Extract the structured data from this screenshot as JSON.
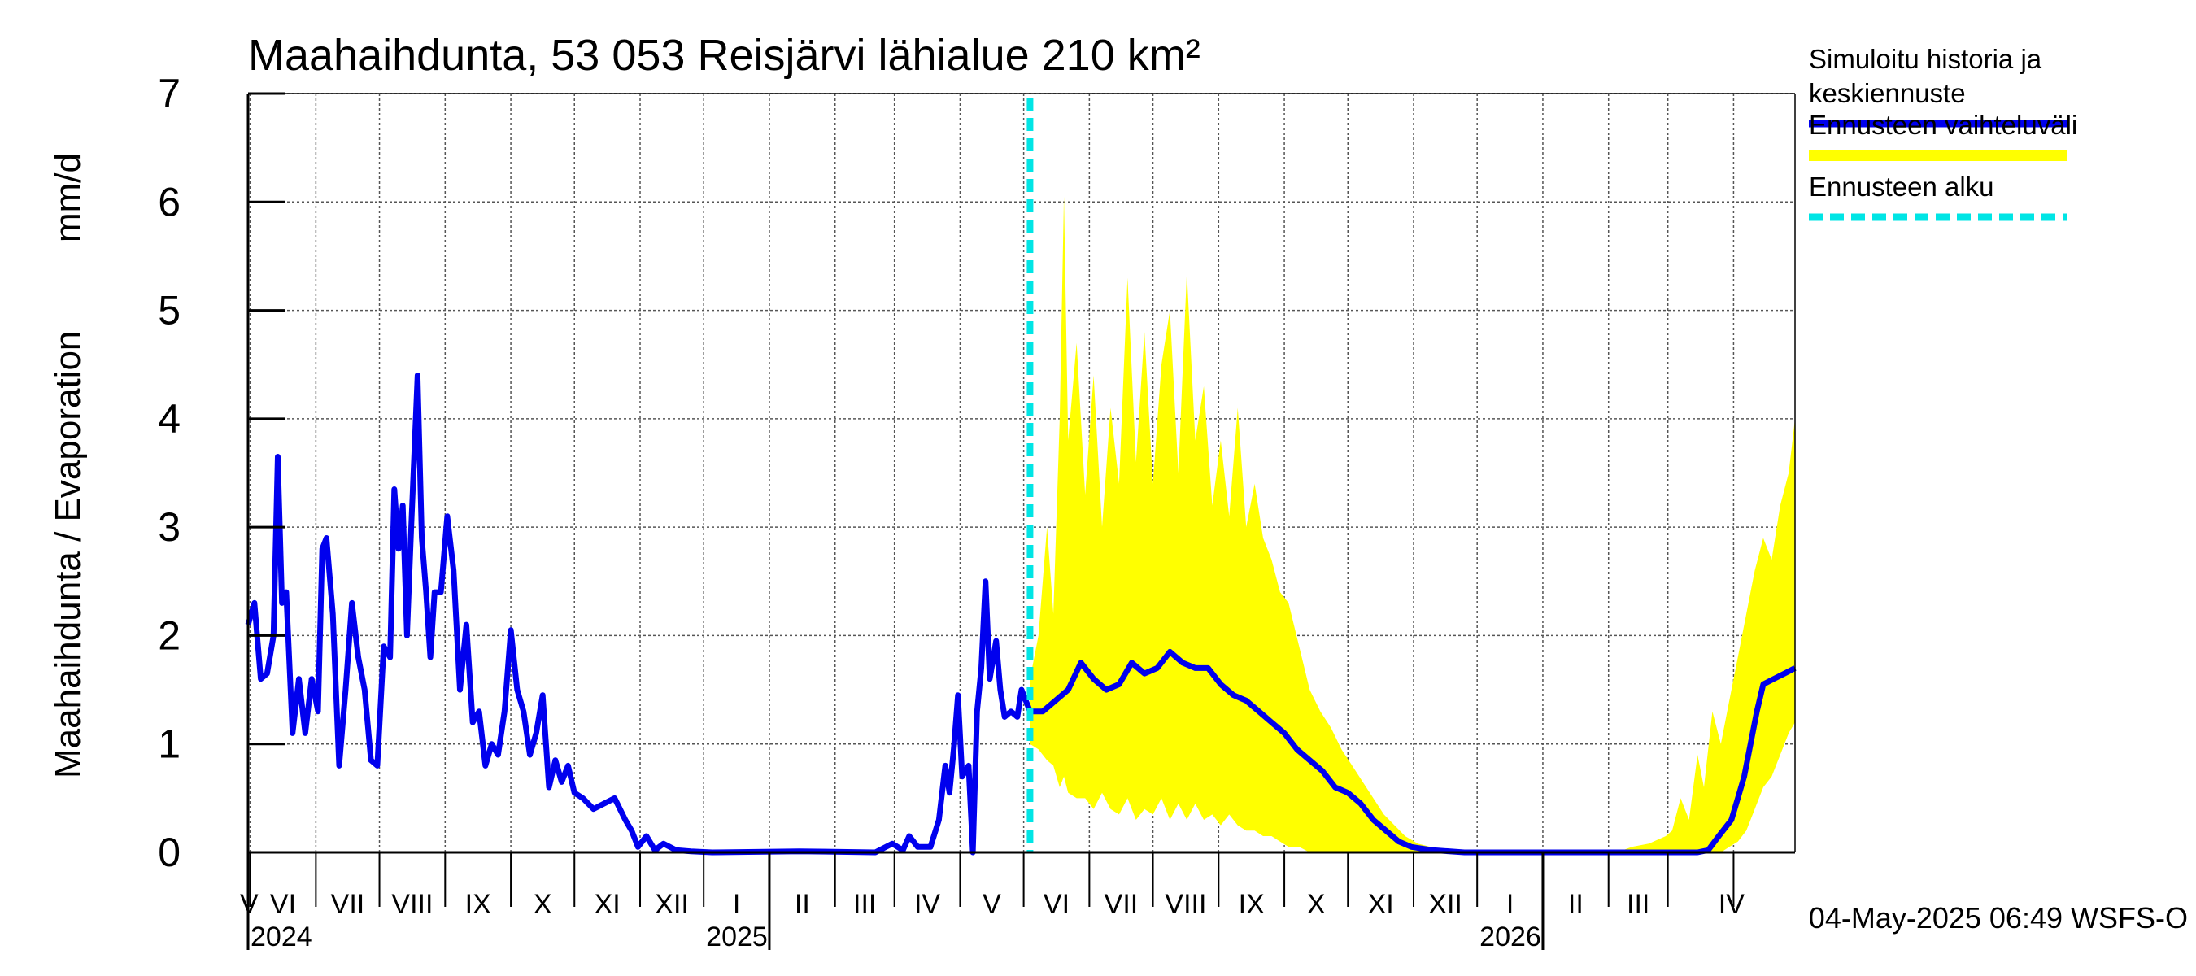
{
  "chart_data": {
    "type": "line",
    "title": "Maahaihdunta, 53 053 Reisjärvi lähialue 210 km²",
    "ylabel_left": "Maahaihdunta / Evaporation",
    "ylabel_unit": "mm/d",
    "ylim": [
      0,
      7
    ],
    "yticks": [
      "0",
      "1",
      "2",
      "3",
      "4",
      "5",
      "6",
      "7"
    ],
    "month_labels": [
      "V",
      "VI",
      "VII",
      "VIII",
      "IX",
      "X",
      "XI",
      "XII",
      "I",
      "II",
      "III",
      "IV",
      "V",
      "VI",
      "VII",
      "VIII",
      "IX",
      "X",
      "XI",
      "XII",
      "I",
      "II",
      "III",
      "IV"
    ],
    "year_labels": [
      "2024",
      "2025",
      "2026"
    ],
    "x_start": "2024-04-30",
    "x_end": "2026-04-30",
    "forecast_start": "2025-05-04",
    "grid": true,
    "legend_placement": "right",
    "timestamp": "04-May-2025 06:49 WSFS-O",
    "colors": {
      "history": "#0000ee",
      "band": "#ffff00",
      "forecast_line": "#00e5e5"
    },
    "series": [
      {
        "name": "Simuloitu historia ja keskiennuste",
        "type": "line",
        "points": [
          [
            "2024-04-30",
            2.1
          ],
          [
            "2024-05-03",
            2.3
          ],
          [
            "2024-05-06",
            1.6
          ],
          [
            "2024-05-09",
            1.65
          ],
          [
            "2024-05-12",
            2.0
          ],
          [
            "2024-05-14",
            3.65
          ],
          [
            "2024-05-16",
            2.3
          ],
          [
            "2024-05-18",
            2.4
          ],
          [
            "2024-05-21",
            1.1
          ],
          [
            "2024-05-24",
            1.6
          ],
          [
            "2024-05-27",
            1.1
          ],
          [
            "2024-05-30",
            1.6
          ],
          [
            "2024-06-02",
            1.3
          ],
          [
            "2024-06-04",
            2.8
          ],
          [
            "2024-06-06",
            2.9
          ],
          [
            "2024-06-09",
            2.2
          ],
          [
            "2024-06-12",
            0.8
          ],
          [
            "2024-06-15",
            1.5
          ],
          [
            "2024-06-18",
            2.3
          ],
          [
            "2024-06-21",
            1.8
          ],
          [
            "2024-06-24",
            1.5
          ],
          [
            "2024-06-27",
            0.85
          ],
          [
            "2024-06-30",
            0.8
          ],
          [
            "2024-07-03",
            1.9
          ],
          [
            "2024-07-06",
            1.8
          ],
          [
            "2024-07-08",
            3.35
          ],
          [
            "2024-07-10",
            2.8
          ],
          [
            "2024-07-12",
            3.2
          ],
          [
            "2024-07-14",
            2.0
          ],
          [
            "2024-07-16",
            3.0
          ],
          [
            "2024-07-19",
            4.4
          ],
          [
            "2024-07-21",
            2.9
          ],
          [
            "2024-07-23",
            2.4
          ],
          [
            "2024-07-25",
            1.8
          ],
          [
            "2024-07-27",
            2.4
          ],
          [
            "2024-07-30",
            2.4
          ],
          [
            "2024-08-02",
            3.1
          ],
          [
            "2024-08-05",
            2.6
          ],
          [
            "2024-08-08",
            1.5
          ],
          [
            "2024-08-11",
            2.1
          ],
          [
            "2024-08-14",
            1.2
          ],
          [
            "2024-08-17",
            1.3
          ],
          [
            "2024-08-20",
            0.8
          ],
          [
            "2024-08-23",
            1.0
          ],
          [
            "2024-08-26",
            0.9
          ],
          [
            "2024-08-29",
            1.3
          ],
          [
            "2024-09-01",
            2.05
          ],
          [
            "2024-09-04",
            1.5
          ],
          [
            "2024-09-07",
            1.3
          ],
          [
            "2024-09-10",
            0.9
          ],
          [
            "2024-09-13",
            1.1
          ],
          [
            "2024-09-16",
            1.45
          ],
          [
            "2024-09-19",
            0.6
          ],
          [
            "2024-09-22",
            0.85
          ],
          [
            "2024-09-25",
            0.65
          ],
          [
            "2024-09-28",
            0.8
          ],
          [
            "2024-10-01",
            0.55
          ],
          [
            "2024-10-05",
            0.5
          ],
          [
            "2024-10-10",
            0.4
          ],
          [
            "2024-10-15",
            0.45
          ],
          [
            "2024-10-20",
            0.5
          ],
          [
            "2024-10-25",
            0.3
          ],
          [
            "2024-10-28",
            0.2
          ],
          [
            "2024-10-31",
            0.05
          ],
          [
            "2024-11-04",
            0.15
          ],
          [
            "2024-11-08",
            0.02
          ],
          [
            "2024-11-12",
            0.08
          ],
          [
            "2024-11-18",
            0.02
          ],
          [
            "2024-11-25",
            0.01
          ],
          [
            "2024-12-05",
            0.0
          ],
          [
            "2025-01-15",
            0.01
          ],
          [
            "2025-02-20",
            0.0
          ],
          [
            "2025-02-28",
            0.08
          ],
          [
            "2025-03-05",
            0.02
          ],
          [
            "2025-03-08",
            0.15
          ],
          [
            "2025-03-12",
            0.05
          ],
          [
            "2025-03-18",
            0.05
          ],
          [
            "2025-03-22",
            0.3
          ],
          [
            "2025-03-25",
            0.8
          ],
          [
            "2025-03-27",
            0.55
          ],
          [
            "2025-03-29",
            0.95
          ],
          [
            "2025-03-31",
            1.45
          ],
          [
            "2025-04-02",
            0.7
          ],
          [
            "2025-04-05",
            0.8
          ],
          [
            "2025-04-07",
            0.0
          ],
          [
            "2025-04-09",
            1.3
          ],
          [
            "2025-04-11",
            1.7
          ],
          [
            "2025-04-13",
            2.5
          ],
          [
            "2025-04-15",
            1.6
          ],
          [
            "2025-04-18",
            1.95
          ],
          [
            "2025-04-20",
            1.5
          ],
          [
            "2025-04-22",
            1.25
          ],
          [
            "2025-04-25",
            1.3
          ],
          [
            "2025-04-28",
            1.25
          ],
          [
            "2025-04-30",
            1.5
          ],
          [
            "2025-05-04",
            1.3
          ],
          [
            "2025-05-10",
            1.3
          ],
          [
            "2025-05-16",
            1.4
          ],
          [
            "2025-05-22",
            1.5
          ],
          [
            "2025-05-28",
            1.75
          ],
          [
            "2025-06-03",
            1.6
          ],
          [
            "2025-06-09",
            1.5
          ],
          [
            "2025-06-15",
            1.55
          ],
          [
            "2025-06-21",
            1.75
          ],
          [
            "2025-06-27",
            1.65
          ],
          [
            "2025-07-03",
            1.7
          ],
          [
            "2025-07-09",
            1.85
          ],
          [
            "2025-07-15",
            1.75
          ],
          [
            "2025-07-21",
            1.7
          ],
          [
            "2025-07-27",
            1.7
          ],
          [
            "2025-08-02",
            1.55
          ],
          [
            "2025-08-08",
            1.45
          ],
          [
            "2025-08-14",
            1.4
          ],
          [
            "2025-08-20",
            1.3
          ],
          [
            "2025-08-26",
            1.2
          ],
          [
            "2025-09-01",
            1.1
          ],
          [
            "2025-09-07",
            0.95
          ],
          [
            "2025-09-13",
            0.85
          ],
          [
            "2025-09-19",
            0.75
          ],
          [
            "2025-09-25",
            0.6
          ],
          [
            "2025-10-01",
            0.55
          ],
          [
            "2025-10-07",
            0.45
          ],
          [
            "2025-10-13",
            0.3
          ],
          [
            "2025-10-19",
            0.2
          ],
          [
            "2025-10-25",
            0.1
          ],
          [
            "2025-10-31",
            0.05
          ],
          [
            "2025-11-10",
            0.02
          ],
          [
            "2025-11-25",
            0.0
          ],
          [
            "2026-03-15",
            0.0
          ],
          [
            "2026-03-20",
            0.02
          ],
          [
            "2026-03-25",
            0.15
          ],
          [
            "2026-03-31",
            0.3
          ],
          [
            "2026-04-03",
            0.5
          ],
          [
            "2026-04-06",
            0.7
          ],
          [
            "2026-04-09",
            1.0
          ],
          [
            "2026-04-12",
            1.3
          ],
          [
            "2026-04-15",
            1.55
          ],
          [
            "2026-04-20",
            1.6
          ],
          [
            "2026-04-25",
            1.65
          ],
          [
            "2026-04-30",
            1.7
          ]
        ]
      },
      {
        "name": "Ennusteen vaihteluväli",
        "type": "band",
        "points": [
          [
            "2025-05-04",
            1.0,
            1.6
          ],
          [
            "2025-05-08",
            0.95,
            2.0
          ],
          [
            "2025-05-12",
            0.85,
            3.0
          ],
          [
            "2025-05-15",
            0.8,
            2.2
          ],
          [
            "2025-05-18",
            0.6,
            4.0
          ],
          [
            "2025-05-20",
            0.7,
            6.05
          ],
          [
            "2025-05-22",
            0.55,
            3.8
          ],
          [
            "2025-05-26",
            0.5,
            4.7
          ],
          [
            "2025-05-30",
            0.5,
            3.3
          ],
          [
            "2025-06-03",
            0.4,
            4.4
          ],
          [
            "2025-06-07",
            0.55,
            3.0
          ],
          [
            "2025-06-11",
            0.4,
            4.1
          ],
          [
            "2025-06-15",
            0.35,
            3.4
          ],
          [
            "2025-06-19",
            0.5,
            5.3
          ],
          [
            "2025-06-23",
            0.3,
            3.6
          ],
          [
            "2025-06-27",
            0.4,
            4.8
          ],
          [
            "2025-07-01",
            0.35,
            3.4
          ],
          [
            "2025-07-05",
            0.5,
            4.5
          ],
          [
            "2025-07-09",
            0.3,
            5.0
          ],
          [
            "2025-07-13",
            0.45,
            3.5
          ],
          [
            "2025-07-17",
            0.3,
            5.35
          ],
          [
            "2025-07-21",
            0.45,
            3.8
          ],
          [
            "2025-07-25",
            0.3,
            4.3
          ],
          [
            "2025-07-29",
            0.35,
            3.2
          ],
          [
            "2025-08-02",
            0.25,
            3.8
          ],
          [
            "2025-08-06",
            0.35,
            3.1
          ],
          [
            "2025-08-10",
            0.25,
            4.1
          ],
          [
            "2025-08-14",
            0.2,
            3.0
          ],
          [
            "2025-08-18",
            0.2,
            3.4
          ],
          [
            "2025-08-22",
            0.15,
            2.9
          ],
          [
            "2025-08-26",
            0.15,
            2.7
          ],
          [
            "2025-08-30",
            0.1,
            2.4
          ],
          [
            "2025-09-03",
            0.05,
            2.3
          ],
          [
            "2025-09-08",
            0.05,
            1.9
          ],
          [
            "2025-09-13",
            0.0,
            1.5
          ],
          [
            "2025-09-18",
            0.0,
            1.3
          ],
          [
            "2025-09-23",
            0.0,
            1.15
          ],
          [
            "2025-09-28",
            0.0,
            0.95
          ],
          [
            "2025-10-03",
            0.0,
            0.8
          ],
          [
            "2025-10-08",
            0.0,
            0.65
          ],
          [
            "2025-10-13",
            0.0,
            0.5
          ],
          [
            "2025-10-18",
            0.0,
            0.35
          ],
          [
            "2025-10-23",
            0.0,
            0.25
          ],
          [
            "2025-10-28",
            0.0,
            0.15
          ],
          [
            "2025-11-03",
            0.0,
            0.08
          ],
          [
            "2025-11-15",
            0.0,
            0.02
          ],
          [
            "2025-12-01",
            0.0,
            0.0
          ],
          [
            "2026-02-05",
            0.0,
            0.0
          ],
          [
            "2026-02-12",
            0.0,
            0.05
          ],
          [
            "2026-02-20",
            0.0,
            0.08
          ],
          [
            "2026-02-28",
            0.0,
            0.15
          ],
          [
            "2026-03-03",
            0.0,
            0.2
          ],
          [
            "2026-03-07",
            0.0,
            0.5
          ],
          [
            "2026-03-11",
            0.0,
            0.3
          ],
          [
            "2026-03-15",
            0.0,
            0.9
          ],
          [
            "2026-03-18",
            0.0,
            0.6
          ],
          [
            "2026-03-22",
            0.0,
            1.3
          ],
          [
            "2026-03-26",
            0.0,
            1.0
          ],
          [
            "2026-03-30",
            0.05,
            1.4
          ],
          [
            "2026-04-03",
            0.1,
            1.8
          ],
          [
            "2026-04-07",
            0.2,
            2.2
          ],
          [
            "2026-04-11",
            0.4,
            2.6
          ],
          [
            "2026-04-15",
            0.6,
            2.9
          ],
          [
            "2026-04-19",
            0.7,
            2.7
          ],
          [
            "2026-04-23",
            0.9,
            3.2
          ],
          [
            "2026-04-27",
            1.1,
            3.5
          ],
          [
            "2026-04-30",
            1.2,
            4.0
          ]
        ]
      },
      {
        "name": "Ennusteen alku",
        "type": "vline",
        "x": "2025-05-04"
      }
    ],
    "legend": [
      {
        "lines": [
          "Simuloitu historia ja",
          "keskiennuste"
        ],
        "color": "#0000ee",
        "style": "solid"
      },
      {
        "lines": [
          "Ennusteen vaihteluväli"
        ],
        "color": "#ffff00",
        "style": "solid"
      },
      {
        "lines": [
          "Ennusteen alku"
        ],
        "color": "#00e5e5",
        "style": "dashed"
      }
    ]
  }
}
